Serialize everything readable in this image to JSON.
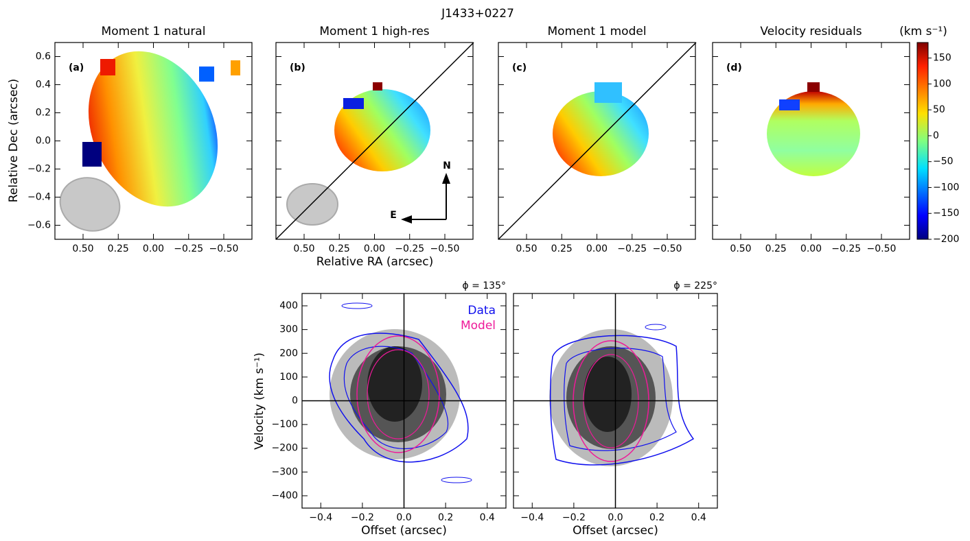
{
  "chart_data": {
    "type": "image-panels",
    "title": "J1433+0227",
    "moment_panels": [
      {
        "title": "Moment 1 natural",
        "tag": "(a)"
      },
      {
        "title": "Moment 1 high-res",
        "tag": "(b)"
      },
      {
        "title": "Moment 1 model",
        "tag": "(c)"
      },
      {
        "title": "Velocity residuals",
        "tag": "(d)"
      }
    ],
    "moment_axes": {
      "xlabel": "Relative RA (arcsec)",
      "ylabel": "Relative Dec (arcsec)",
      "xlim": [
        0.7,
        -0.7
      ],
      "ylim": [
        -0.7,
        0.7
      ],
      "xticks": [
        {
          "value": 0.5,
          "label": "0.50"
        },
        {
          "value": 0.25,
          "label": "0.25"
        },
        {
          "value": 0,
          "label": "0.00"
        },
        {
          "value": -0.25,
          "label": "−0.25"
        },
        {
          "value": -0.5,
          "label": "−0.50"
        }
      ],
      "yticks": [
        {
          "value": -0.6,
          "label": "−0.6"
        },
        {
          "value": -0.4,
          "label": "−0.4"
        },
        {
          "value": -0.2,
          "label": "−0.2"
        },
        {
          "value": 0,
          "label": "0.0"
        },
        {
          "value": 0.2,
          "label": "0.2"
        },
        {
          "value": 0.4,
          "label": "0.4"
        },
        {
          "value": 0.6,
          "label": "0.6"
        }
      ]
    },
    "compass": {
      "north": "N",
      "east": "E"
    },
    "colorbar": {
      "label": "(km s⁻¹)",
      "lim": [
        -200,
        180
      ],
      "ticks": [
        {
          "value": -200,
          "label": "−200"
        },
        {
          "value": -150,
          "label": "−150"
        },
        {
          "value": -100,
          "label": "−100"
        },
        {
          "value": -50,
          "label": "−50"
        },
        0,
        50,
        100,
        150
      ]
    },
    "pv_panels": [
      {
        "annotation": "ϕ = 135°"
      },
      {
        "annotation": "ϕ = 225°"
      }
    ],
    "pv_axes": {
      "xlabel": "Offset (arcsec)",
      "ylabel": "Velocity (km s⁻¹)",
      "xlim": [
        -0.49,
        0.49
      ],
      "ylim": [
        -452,
        452
      ],
      "xticks": [
        {
          "value": -0.4,
          "label": "−0.4"
        },
        {
          "value": -0.2,
          "label": "−0.2"
        },
        {
          "value": 0,
          "label": "0.0"
        },
        {
          "value": 0.2,
          "label": "0.2"
        },
        {
          "value": 0.4,
          "label": "0.4"
        }
      ],
      "yticks": [
        {
          "value": -400,
          "label": "−400"
        },
        {
          "value": -300,
          "label": "−300"
        },
        {
          "value": -200,
          "label": "−200"
        },
        {
          "value": -100,
          "label": "−100"
        },
        0,
        100,
        200,
        300,
        400
      ]
    },
    "legend": [
      {
        "name": "Data",
        "color": "#1010ee"
      },
      {
        "name": "Model",
        "color": "#ee1a99"
      }
    ]
  }
}
